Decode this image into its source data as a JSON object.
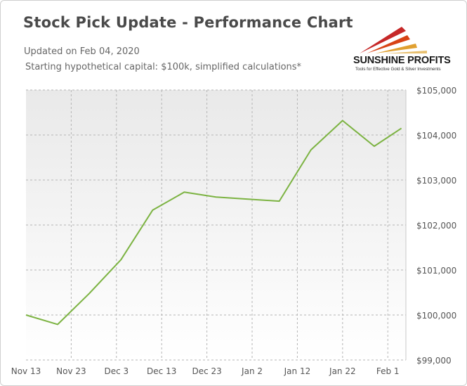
{
  "header": {
    "title": "Stock Pick Update - Performance Chart",
    "updated": "Updated on Feb 04, 2020",
    "note": "Starting hypothetical capital: $100k, simplified calculations*"
  },
  "logo": {
    "name": "SUNSHINE PROFITS",
    "tagline": "Tools for Effective Gold & Silver Investments"
  },
  "colors": {
    "line": "#7cb342",
    "plot_bg_top": "#e9e9e9",
    "plot_bg_bottom": "#ffffff",
    "grid": "#b5b5b5"
  },
  "chart_data": {
    "type": "line",
    "title": "Stock Pick Update - Performance Chart",
    "x_ticks": [
      "Nov 13",
      "Nov 23",
      "Dec 3",
      "Dec 13",
      "Dec 23",
      "Jan 2",
      "Jan 12",
      "Jan 22",
      "Feb 1"
    ],
    "y_ticks": [
      "$99,000",
      "$100,000",
      "$101,000",
      "$102,000",
      "$103,000",
      "$104,000",
      "$105,000"
    ],
    "ylim": [
      99000,
      105000
    ],
    "xlim": [
      "2019-11-13",
      "2020-02-05"
    ],
    "grid": true,
    "series": [
      {
        "points": [
          {
            "x": "2019-11-13",
            "y": 100000
          },
          {
            "x": "2019-11-20",
            "y": 99790
          },
          {
            "x": "2019-11-27",
            "y": 100480
          },
          {
            "x": "2019-12-04",
            "y": 101230
          },
          {
            "x": "2019-12-11",
            "y": 102330
          },
          {
            "x": "2019-12-18",
            "y": 102730
          },
          {
            "x": "2019-12-25",
            "y": 102620
          },
          {
            "x": "2020-01-08",
            "y": 102530
          },
          {
            "x": "2020-01-15",
            "y": 103670
          },
          {
            "x": "2020-01-22",
            "y": 104320
          },
          {
            "x": "2020-01-29",
            "y": 103750
          },
          {
            "x": "2020-02-04",
            "y": 104150
          }
        ]
      }
    ]
  }
}
